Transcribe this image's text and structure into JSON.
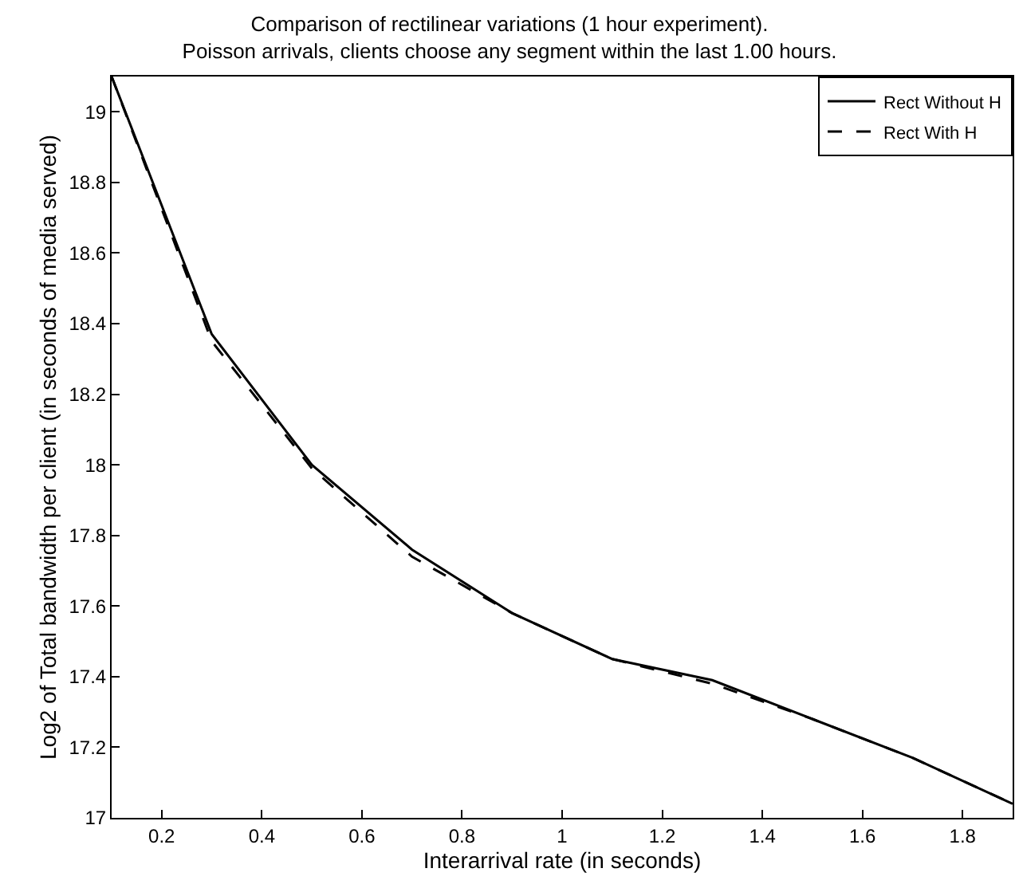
{
  "chart_data": {
    "type": "line",
    "title": "Comparison of rectilinear variations (1 hour experiment).",
    "subtitle": "Poisson arrivals, clients choose any segment within the last 1.00 hours.",
    "xlabel": "Interarrival rate (in seconds)",
    "ylabel": "Log2 of Total bandwidth per client (in seconds of media served)",
    "x": [
      0.1,
      0.3,
      0.5,
      0.7,
      0.9,
      1.1,
      1.3,
      1.5,
      1.7,
      1.9
    ],
    "series": [
      {
        "name": "Rect Without H",
        "color": "#000000",
        "line_style": "solid",
        "values": [
          19.1,
          18.37,
          18.0,
          17.76,
          17.58,
          17.45,
          17.39,
          17.28,
          17.17,
          17.04
        ]
      },
      {
        "name": "Rect With H",
        "color": "#000000",
        "line_style": "dashed",
        "values": [
          19.1,
          18.35,
          17.99,
          17.74,
          17.58,
          17.45,
          17.38,
          17.28,
          17.17,
          17.04
        ]
      }
    ],
    "xlim": [
      0.1,
      1.9
    ],
    "xticks": [
      0.2,
      0.4,
      0.6,
      0.8,
      1,
      1.2,
      1.4,
      1.6,
      1.8
    ],
    "ylim": [
      17,
      19.1
    ],
    "yticks": [
      17,
      17.2,
      17.4,
      17.6,
      17.8,
      18,
      18.2,
      18.4,
      18.6,
      18.8,
      19
    ],
    "legend": "top right",
    "marker": "none"
  }
}
